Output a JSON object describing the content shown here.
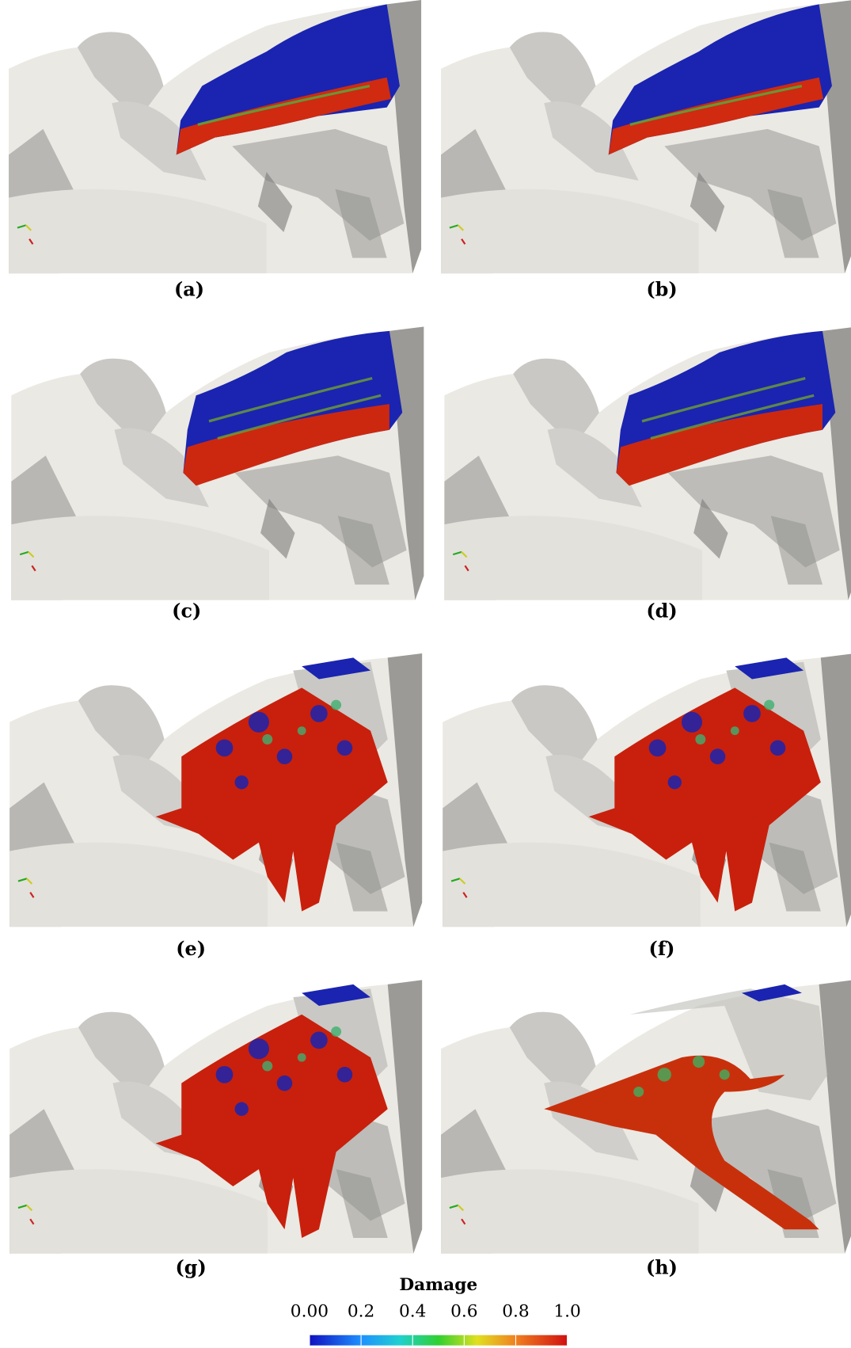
{
  "panels": [
    {
      "label": "(a)"
    },
    {
      "label": "(b)"
    },
    {
      "label": "(c)"
    },
    {
      "label": "(d)"
    },
    {
      "label": "(e)"
    },
    {
      "label": "(f)"
    },
    {
      "label": "(g)"
    },
    {
      "label": "(h)"
    }
  ],
  "colorbar": {
    "title": "Damage",
    "range": [
      0,
      1
    ],
    "ticks": [
      {
        "value": 0,
        "label": "0.00"
      },
      0.2,
      0.4,
      0.6,
      0.8,
      {
        "value": 1,
        "label": "1.0"
      }
    ]
  }
}
